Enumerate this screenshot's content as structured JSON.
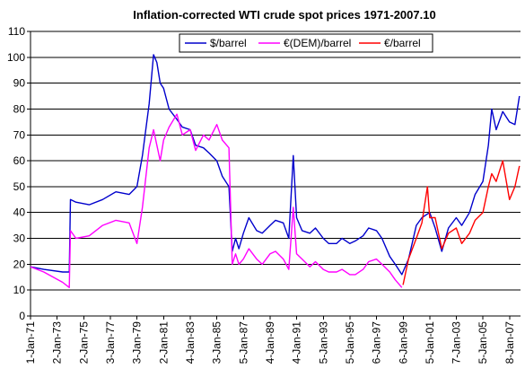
{
  "chart_data": {
    "type": "line",
    "title": "Inflation-corrected WTI crude spot prices 1971-2007.10",
    "xlabel": "",
    "ylabel": "",
    "ylim": [
      0,
      110
    ],
    "yticks": [
      0,
      10,
      20,
      30,
      40,
      50,
      60,
      70,
      80,
      90,
      100,
      110
    ],
    "xlim": [
      "1971-01-01",
      "2007-10-31"
    ],
    "xtick_labels": [
      "1-Jan-71",
      "2-Jan-73",
      "2-Jan-75",
      "3-Jan-77",
      "3-Jan-79",
      "2-Jan-81",
      "4-Jan-83",
      "3-Jan-85",
      "5-Jan-87",
      "4-Jan-89",
      "4-Jan-91",
      "5-Jan-93",
      "5-Jan-95",
      "6-Jan-97",
      "6-Jan-99",
      "5-Jan-01",
      "7-Jan-03",
      "5-Jan-05",
      "8-Jan-07"
    ],
    "xtick_dates": [
      "1971-01-01",
      "1973-01-02",
      "1975-01-02",
      "1977-01-03",
      "1979-01-03",
      "1981-01-02",
      "1983-01-04",
      "1985-01-03",
      "1987-01-05",
      "1989-01-04",
      "1991-01-04",
      "1993-01-05",
      "1995-01-05",
      "1997-01-06",
      "1999-01-06",
      "2001-01-05",
      "2003-01-07",
      "2005-01-05",
      "2007-01-08"
    ],
    "grid": "horizontal",
    "legend_position": "top-right",
    "series": [
      {
        "name": "$/barrel",
        "color": "#0000cc",
        "x": [
          "1971-01-01",
          "1972-01-01",
          "1973-06-01",
          "1973-12-01",
          "1974-01-01",
          "1974-06-01",
          "1975-06-01",
          "1976-06-01",
          "1977-06-01",
          "1978-06-01",
          "1979-01-01",
          "1979-06-01",
          "1979-12-01",
          "1980-04-01",
          "1980-07-01",
          "1980-10-01",
          "1981-01-01",
          "1981-06-01",
          "1982-01-01",
          "1982-06-01",
          "1983-01-01",
          "1983-06-01",
          "1984-01-01",
          "1984-06-01",
          "1985-01-01",
          "1985-06-01",
          "1985-12-01",
          "1986-03-01",
          "1986-06-01",
          "1986-09-01",
          "1987-01-01",
          "1987-06-01",
          "1988-01-01",
          "1988-06-01",
          "1989-01-01",
          "1989-06-01",
          "1990-01-01",
          "1990-06-01",
          "1990-10-01",
          "1991-01-01",
          "1991-06-01",
          "1992-01-01",
          "1992-06-01",
          "1993-01-01",
          "1993-06-01",
          "1994-01-01",
          "1994-06-01",
          "1995-01-01",
          "1995-06-01",
          "1996-01-01",
          "1996-06-01",
          "1997-01-01",
          "1997-06-01",
          "1998-01-01",
          "1998-06-01",
          "1998-12-01",
          "1999-06-01",
          "2000-01-01",
          "2000-06-01",
          "2001-01-01",
          "2001-06-01",
          "2001-12-01",
          "2002-06-01",
          "2003-01-01",
          "2003-06-01",
          "2004-01-01",
          "2004-06-01",
          "2005-01-01",
          "2005-06-01",
          "2005-09-01",
          "2006-01-01",
          "2006-07-01",
          "2007-01-01",
          "2007-06-01",
          "2007-10-01"
        ],
        "values": [
          19,
          18,
          17,
          17,
          45,
          44,
          43,
          45,
          48,
          47,
          50,
          62,
          82,
          101,
          98,
          90,
          88,
          80,
          76,
          73,
          72,
          66,
          65,
          63,
          60,
          54,
          50,
          25,
          30,
          26,
          32,
          38,
          33,
          32,
          35,
          37,
          36,
          30,
          62,
          38,
          33,
          32,
          34,
          30,
          28,
          28,
          30,
          28,
          29,
          31,
          34,
          33,
          30,
          23,
          20,
          16,
          22,
          35,
          38,
          40,
          34,
          25,
          34,
          38,
          35,
          40,
          47,
          52,
          66,
          80,
          72,
          79,
          75,
          74,
          85
        ]
      },
      {
        "name": "€(DEM)/barrel",
        "color": "#ff00ff",
        "x": [
          "1971-01-01",
          "1972-01-01",
          "1973-06-01",
          "1973-12-01",
          "1974-01-01",
          "1974-06-01",
          "1975-06-01",
          "1976-06-01",
          "1977-06-01",
          "1978-06-01",
          "1979-01-01",
          "1979-06-01",
          "1979-12-01",
          "1980-04-01",
          "1980-07-01",
          "1980-10-01",
          "1981-01-01",
          "1981-06-01",
          "1982-01-01",
          "1982-06-01",
          "1983-01-01",
          "1983-06-01",
          "1984-01-01",
          "1984-06-01",
          "1985-01-01",
          "1985-06-01",
          "1985-12-01",
          "1986-03-01",
          "1986-06-01",
          "1986-09-01",
          "1987-01-01",
          "1987-06-01",
          "1988-01-01",
          "1988-06-01",
          "1989-01-01",
          "1989-06-01",
          "1990-01-01",
          "1990-06-01",
          "1990-10-01",
          "1991-01-01",
          "1991-06-01",
          "1992-01-01",
          "1992-06-01",
          "1993-01-01",
          "1993-06-01",
          "1994-01-01",
          "1994-06-01",
          "1995-01-01",
          "1995-06-01",
          "1996-01-01",
          "1996-06-01",
          "1997-01-01",
          "1997-06-01",
          "1998-01-01",
          "1998-06-01",
          "1998-12-01"
        ],
        "values": [
          19,
          17,
          13,
          11,
          33,
          30,
          31,
          35,
          37,
          36,
          28,
          42,
          65,
          72,
          66,
          60,
          68,
          73,
          78,
          70,
          72,
          64,
          70,
          68,
          74,
          68,
          65,
          20,
          24,
          20,
          22,
          26,
          22,
          20,
          24,
          25,
          22,
          18,
          42,
          24,
          22,
          19,
          21,
          18,
          17,
          17,
          18,
          16,
          16,
          18,
          21,
          22,
          20,
          17,
          14,
          11
        ]
      },
      {
        "name": "€/barrel",
        "color": "#ff0000",
        "x": [
          "1999-01-01",
          "1999-06-01",
          "2000-01-01",
          "2000-06-01",
          "2000-11-01",
          "2001-01-01",
          "2001-06-01",
          "2001-12-01",
          "2002-06-01",
          "2003-01-01",
          "2003-06-01",
          "2004-01-01",
          "2004-06-01",
          "2005-01-01",
          "2005-06-01",
          "2005-09-01",
          "2006-01-01",
          "2006-07-01",
          "2007-01-01",
          "2007-06-01",
          "2007-10-01"
        ],
        "values": [
          12,
          22,
          30,
          36,
          50,
          38,
          38,
          26,
          32,
          34,
          28,
          32,
          37,
          40,
          50,
          55,
          52,
          60,
          45,
          50,
          58
        ]
      }
    ]
  }
}
